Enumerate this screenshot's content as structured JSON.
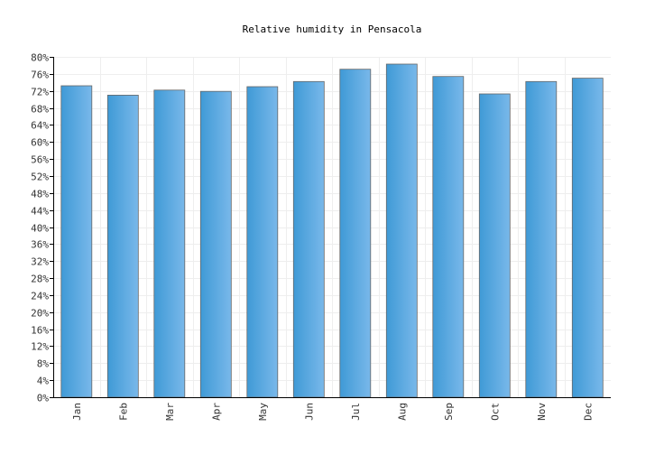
{
  "chart_data": {
    "type": "bar",
    "title": "Relative humidity in Pensacola",
    "categories": [
      "Jan",
      "Feb",
      "Mar",
      "Apr",
      "May",
      "Jun",
      "Jul",
      "Aug",
      "Sep",
      "Oct",
      "Nov",
      "Dec"
    ],
    "values": [
      73.2,
      71.0,
      72.2,
      71.9,
      73.0,
      74.2,
      77.1,
      78.3,
      75.4,
      71.3,
      74.2,
      75.0
    ],
    "ylim": [
      0,
      80
    ],
    "yticks": [
      "0%",
      "4%",
      "8%",
      "12%",
      "16%",
      "20%",
      "24%",
      "28%",
      "32%",
      "36%",
      "40%",
      "44%",
      "48%",
      "52%",
      "56%",
      "60%",
      "64%",
      "68%",
      "72%",
      "76%",
      "80%"
    ],
    "xlabel": "",
    "ylabel": "",
    "grid": true,
    "legend": "none",
    "colors": {
      "bar_light": "#79b8ea",
      "bar_dark": "#3f9ad6",
      "bar_border": "#666666",
      "grid": "#eeeeee",
      "axis": "#000000"
    }
  }
}
